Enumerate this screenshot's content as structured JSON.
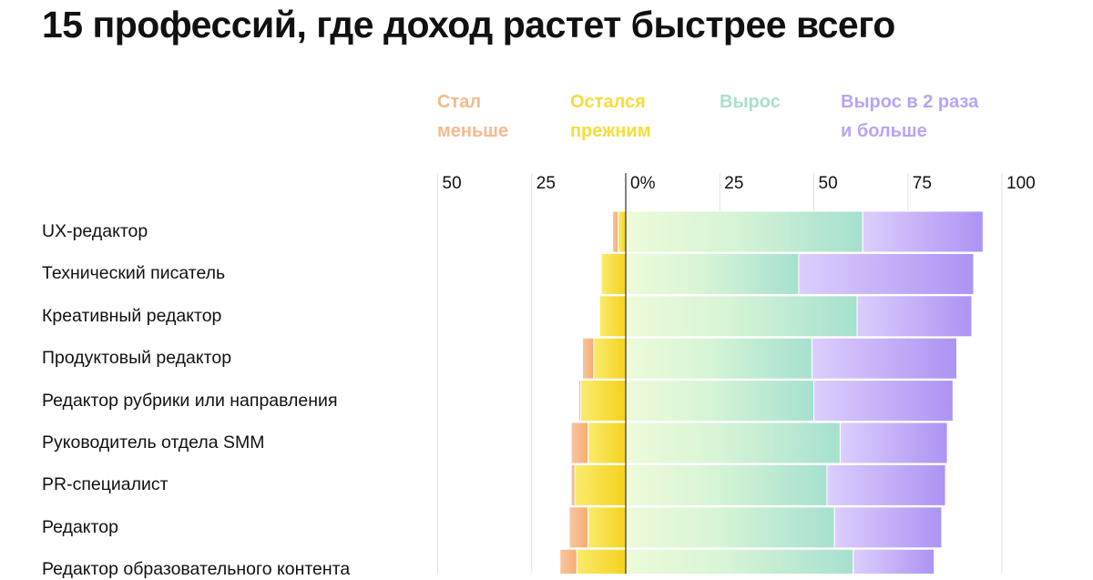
{
  "chart_data": {
    "type": "bar",
    "stacked": "diverging",
    "title": "15 профессий, где доход растет быстрее всего",
    "x_ticks": [
      "50",
      "25",
      "0%",
      "25",
      "50",
      "75",
      "100"
    ],
    "xlim": [
      -50,
      100
    ],
    "legend": [
      {
        "key": "decreased",
        "lines": [
          "Стал",
          "меньше"
        ],
        "color": "#f7b98d"
      },
      {
        "key": "same",
        "lines": [
          "Остался",
          "прежним"
        ],
        "color": "#f8dc3a"
      },
      {
        "key": "grew",
        "lines": [
          "Вырос"
        ],
        "color": "#a9dfcf"
      },
      {
        "key": "doubled",
        "lines": [
          "Вырос в 2 раза",
          "и больше"
        ],
        "color": "#b9a3f5"
      }
    ],
    "categories": [
      "UX-редактор",
      "Технический писатель",
      "Креативный редактор",
      "Продуктовый редактор",
      "Редактор рубрики или направления",
      "Руководитель отдела SMM",
      "PR-специалист",
      "Редактор",
      "Редактор образовательного контента"
    ],
    "series": [
      {
        "name": "Стал меньше",
        "key": "decreased",
        "values": [
          1.5,
          0,
          0,
          3,
          0.5,
          4.5,
          1,
          5,
          4.5
        ]
      },
      {
        "name": "Остался прежним",
        "key": "same",
        "values": [
          2,
          6.5,
          7,
          8.5,
          12,
          10,
          13.5,
          10,
          13
        ]
      },
      {
        "name": "Вырос",
        "key": "grew",
        "values": [
          63,
          46,
          61.5,
          49.5,
          50,
          57,
          53.5,
          55.5,
          60.5
        ]
      },
      {
        "name": "Вырос в 2 раза и больше",
        "key": "doubled",
        "values": [
          32,
          46.5,
          30.5,
          38.5,
          37,
          28.5,
          31.5,
          28.5,
          21.5
        ]
      }
    ]
  }
}
